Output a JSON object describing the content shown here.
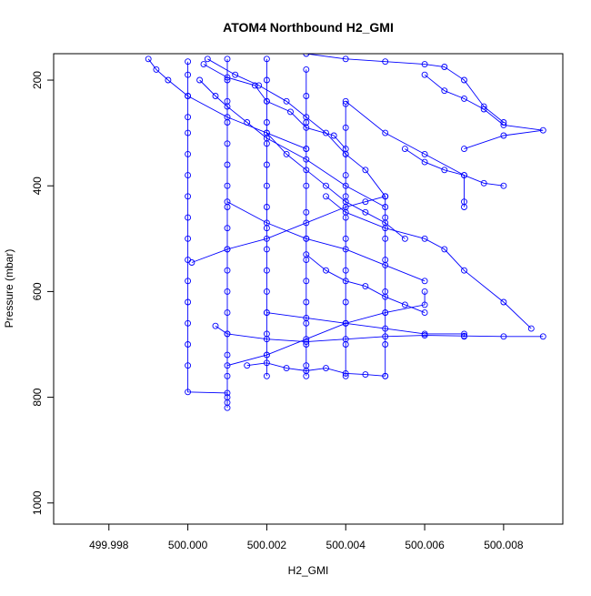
{
  "chart_data": {
    "type": "line",
    "title": "ATOM4 Northbound H2_GMI",
    "xlabel": "H2_GMI",
    "ylabel": "Pressure (mbar)",
    "xlim": [
      499.9966,
      500.0095
    ],
    "ylim": [
      1040,
      150
    ],
    "y_reversed": true,
    "grid": false,
    "legend": "none",
    "x_ticks": [
      "499.998",
      "500.000",
      "500.002",
      "500.004",
      "500.006",
      "500.008"
    ],
    "y_ticks": [
      "200",
      "400",
      "600",
      "800",
      "1000"
    ],
    "colors": {
      "series": "#0000ff",
      "axis": "#000000",
      "background": "#ffffff"
    },
    "series": [
      {
        "x": [
          500.0,
          500.0,
          500.0,
          500.0,
          500.0,
          500.0,
          500.0,
          500.0,
          500.0,
          500.0,
          500.0,
          500.0,
          500.0,
          500.0,
          500.0,
          500.0,
          500.0,
          500.001,
          500.001
        ],
        "y": [
          165,
          190,
          230,
          270,
          300,
          340,
          380,
          420,
          460,
          500,
          540,
          580,
          620,
          660,
          700,
          740,
          790,
          792,
          810
        ]
      },
      {
        "x": [
          500.001,
          500.001,
          500.001,
          500.001,
          500.001,
          500.001,
          500.001,
          500.001,
          500.001,
          500.001,
          500.001,
          500.001,
          500.001,
          500.001,
          500.001,
          500.001,
          500.001,
          500.001
        ],
        "y": [
          160,
          200,
          240,
          280,
          320,
          360,
          400,
          440,
          480,
          520,
          560,
          600,
          640,
          680,
          720,
          760,
          800,
          820
        ]
      },
      {
        "x": [
          500.002,
          500.002,
          500.002,
          500.002,
          500.002,
          500.002,
          500.002,
          500.002,
          500.002,
          500.002,
          500.002,
          500.002,
          500.002,
          500.002,
          500.002,
          500.002
        ],
        "y": [
          160,
          200,
          240,
          280,
          320,
          360,
          400,
          440,
          480,
          520,
          560,
          600,
          640,
          680,
          720,
          760
        ]
      },
      {
        "x": [
          500.003,
          500.003,
          500.003,
          500.003,
          500.003,
          500.003,
          500.003,
          500.003,
          500.003,
          500.003,
          500.003,
          500.003,
          500.003,
          500.003
        ],
        "y": [
          180,
          230,
          280,
          330,
          400,
          450,
          500,
          540,
          580,
          620,
          660,
          700,
          740,
          760
        ]
      },
      {
        "x": [
          500.004,
          500.004,
          500.004,
          500.004,
          500.004,
          500.004,
          500.004,
          500.004,
          500.004,
          500.004,
          500.004,
          500.004
        ],
        "y": [
          245,
          290,
          340,
          380,
          420,
          460,
          500,
          560,
          620,
          660,
          700,
          760
        ]
      },
      {
        "x": [
          500.005,
          500.005,
          500.005,
          500.005,
          500.005,
          500.005,
          500.005,
          500.005
        ],
        "y": [
          420,
          460,
          500,
          540,
          600,
          640,
          700,
          760
        ]
      },
      {
        "x": [
          499.999,
          499.9992,
          499.9995,
          500.0,
          500.001,
          500.002,
          500.003
        ],
        "y": [
          160,
          180,
          200,
          230,
          270,
          300,
          330
        ]
      },
      {
        "x": [
          500.0003,
          500.0007,
          500.001,
          500.0015,
          500.002,
          500.003,
          500.004,
          500.005
        ],
        "y": [
          200,
          230,
          250,
          280,
          310,
          350,
          400,
          440
        ]
      },
      {
        "x": [
          500.0005,
          500.0012,
          500.0018,
          500.0025,
          500.003,
          500.0035,
          500.004,
          500.0045,
          500.005
        ],
        "y": [
          160,
          190,
          210,
          240,
          270,
          300,
          340,
          370,
          420
        ]
      },
      {
        "x": [
          500.0004,
          500.001,
          500.0017,
          500.002,
          500.0026,
          500.003,
          500.0037,
          500.004
        ],
        "y": [
          170,
          195,
          210,
          240,
          260,
          290,
          305,
          330
        ]
      },
      {
        "x": [
          500.003,
          500.004,
          500.005,
          500.006,
          500.0065,
          500.007,
          500.0075,
          500.008
        ],
        "y": [
          150,
          160,
          165,
          170,
          175,
          200,
          250,
          280
        ]
      },
      {
        "x": [
          500.006,
          500.0065,
          500.007,
          500.0075,
          500.008,
          500.009,
          500.008,
          500.007
        ],
        "y": [
          190,
          220,
          235,
          255,
          285,
          295,
          305,
          330
        ]
      },
      {
        "x": [
          500.0055,
          500.006,
          500.0065,
          500.007,
          500.0075,
          500.008
        ],
        "y": [
          330,
          355,
          370,
          380,
          395,
          400
        ]
      },
      {
        "x": [
          500.004,
          500.005,
          500.006,
          500.007,
          500.007,
          500.007
        ],
        "y": [
          240,
          300,
          340,
          380,
          430,
          440
        ]
      },
      {
        "x": [
          500.001,
          500.002,
          500.003,
          500.004,
          500.005,
          500.006
        ],
        "y": [
          430,
          470,
          500,
          520,
          550,
          580
        ]
      },
      {
        "x": [
          500.0035,
          500.004,
          500.005,
          500.006,
          500.0065,
          500.007,
          500.008,
          500.0087
        ],
        "y": [
          420,
          450,
          480,
          500,
          520,
          560,
          620,
          670
        ]
      },
      {
        "x": [
          500.002,
          500.003,
          500.004,
          500.005,
          500.006,
          500.007,
          500.007
        ],
        "y": [
          640,
          650,
          660,
          670,
          680,
          680,
          685
        ]
      },
      {
        "x": [
          500.0007,
          500.001,
          500.002,
          500.003,
          500.004,
          500.005,
          500.006,
          500.007,
          500.008,
          500.009
        ],
        "y": [
          665,
          680,
          690,
          695,
          690,
          685,
          683,
          684,
          685,
          685
        ]
      },
      {
        "x": [
          500.001,
          500.002,
          500.003,
          500.004,
          500.005,
          500.006,
          500.006
        ],
        "y": [
          740,
          720,
          690,
          660,
          640,
          625,
          600
        ]
      },
      {
        "x": [
          500.0015,
          500.002,
          500.0025,
          500.003,
          500.0035,
          500.004,
          500.0045,
          500.005
        ],
        "y": [
          740,
          735,
          745,
          750,
          745,
          755,
          757,
          760
        ]
      },
      {
        "x": [
          500.0001,
          500.001,
          500.002,
          500.003,
          500.004,
          500.0045,
          500.005
        ],
        "y": [
          545,
          520,
          500,
          470,
          440,
          430,
          420
        ]
      },
      {
        "x": [
          500.002,
          500.0025,
          500.003,
          500.0035,
          500.004,
          500.0045,
          500.005,
          500.0055
        ],
        "y": [
          300,
          340,
          370,
          400,
          430,
          450,
          470,
          500
        ]
      },
      {
        "x": [
          500.003,
          500.0035,
          500.004,
          500.0045,
          500.005,
          500.0055,
          500.006
        ],
        "y": [
          530,
          560,
          580,
          590,
          610,
          625,
          640
        ]
      }
    ]
  }
}
